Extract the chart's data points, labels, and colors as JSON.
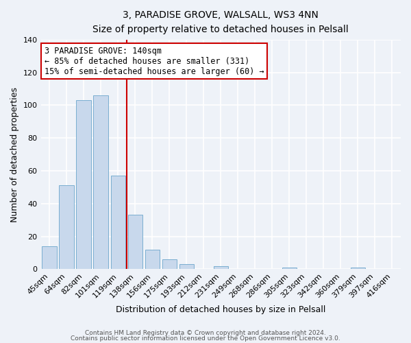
{
  "title": "3, PARADISE GROVE, WALSALL, WS3 4NN",
  "subtitle": "Size of property relative to detached houses in Pelsall",
  "xlabel": "Distribution of detached houses by size in Pelsall",
  "ylabel": "Number of detached properties",
  "bar_labels": [
    "45sqm",
    "64sqm",
    "82sqm",
    "101sqm",
    "119sqm",
    "138sqm",
    "156sqm",
    "175sqm",
    "193sqm",
    "212sqm",
    "231sqm",
    "249sqm",
    "268sqm",
    "286sqm",
    "305sqm",
    "323sqm",
    "342sqm",
    "360sqm",
    "379sqm",
    "397sqm",
    "416sqm"
  ],
  "bar_values": [
    14,
    51,
    103,
    106,
    57,
    33,
    12,
    6,
    3,
    0,
    2,
    0,
    0,
    0,
    1,
    0,
    0,
    0,
    1,
    0,
    0
  ],
  "bar_color": "#c8d8ec",
  "bar_edge_color": "#7aaed0",
  "line_color": "#cc0000",
  "annotation_box_color": "#ffffff",
  "annotation_box_edge": "#cc0000",
  "pct_smaller": 85,
  "n_smaller": 331,
  "pct_larger": 15,
  "n_larger": 60,
  "ylim": [
    0,
    140
  ],
  "yticks": [
    0,
    20,
    40,
    60,
    80,
    100,
    120,
    140
  ],
  "footer1": "Contains HM Land Registry data © Crown copyright and database right 2024.",
  "footer2": "Contains public sector information licensed under the Open Government Licence v3.0.",
  "background_color": "#eef2f8",
  "grid_color": "#ffffff"
}
